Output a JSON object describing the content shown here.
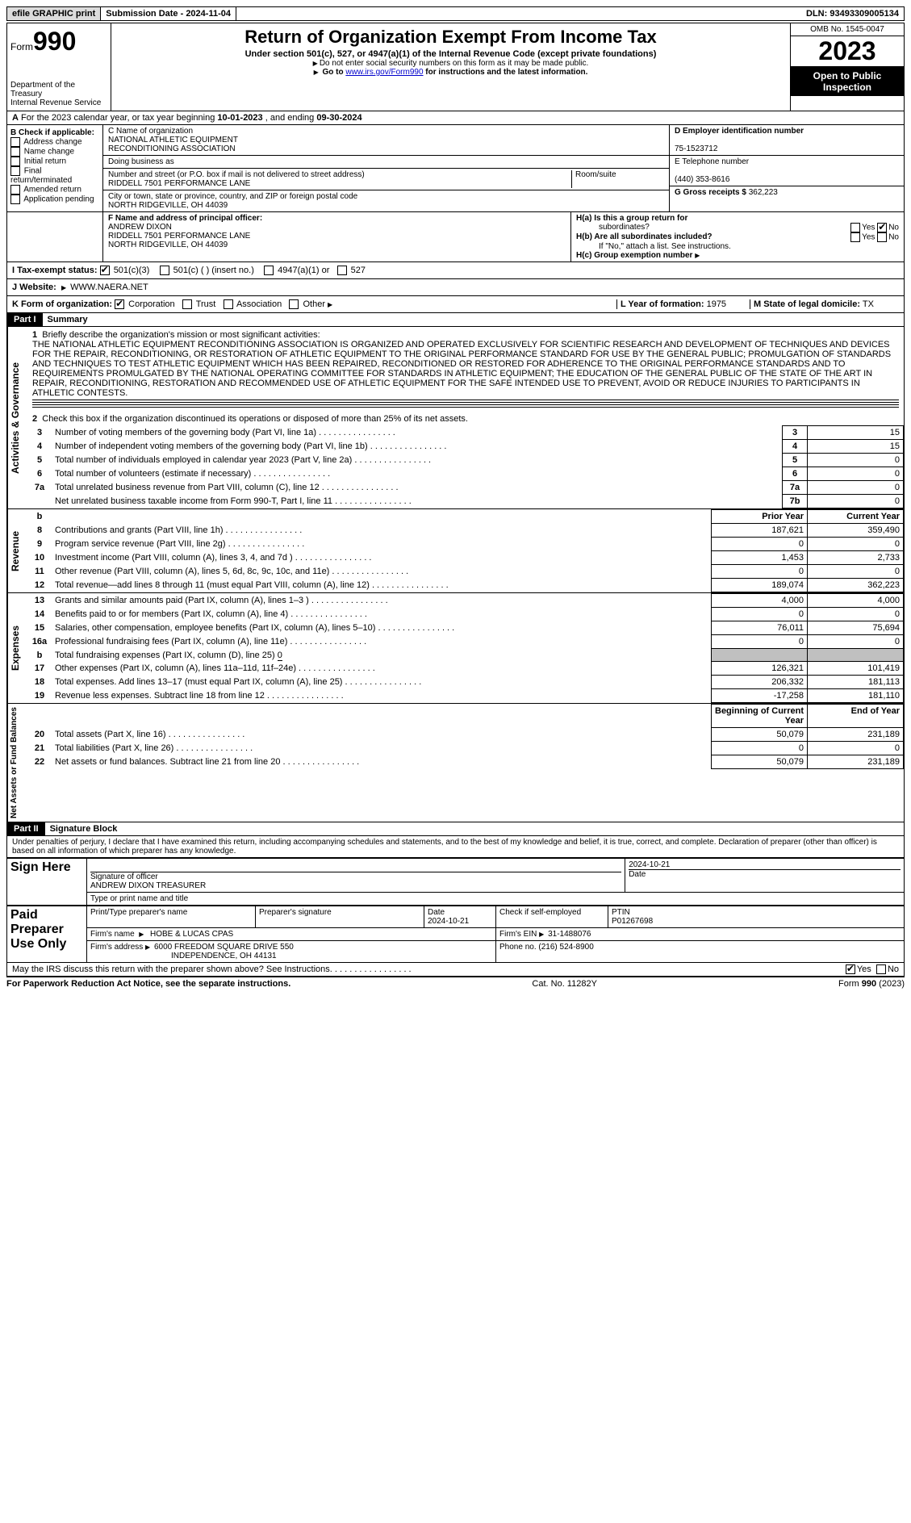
{
  "topbar": {
    "efile_label": "efile GRAPHIC print",
    "submission": "Submission Date - 2024-11-04",
    "dln": "DLN: 93493309005134"
  },
  "header": {
    "form_word": "Form",
    "form_no": "990",
    "dept1": "Department of the Treasury",
    "dept2": "Internal Revenue Service",
    "title": "Return of Organization Exempt From Income Tax",
    "sub": "Under section 501(c), 527, or 4947(a)(1) of the Internal Revenue Code (except private foundations)",
    "note_ssn": "Do not enter social security numbers on this form as it may be made public.",
    "note_goto_pre": "Go to ",
    "note_goto_link": "www.irs.gov/Form990",
    "note_goto_post": " for instructions and the latest information.",
    "omb": "OMB No. 1545-0047",
    "year": "2023",
    "inspect1": "Open to Public",
    "inspect2": "Inspection"
  },
  "rowA": {
    "label": "A",
    "text_pre": "For the 2023 calendar year, or tax year beginning ",
    "begin": "10-01-2023",
    "mid": "   , and ending ",
    "end": "09-30-2024"
  },
  "B": {
    "label": "B Check if applicable:",
    "addr": "Address change",
    "name": "Name change",
    "initial": "Initial return",
    "final": "Final return/terminated",
    "amended": "Amended return",
    "pending": "Application pending"
  },
  "C": {
    "label": "C Name of organization",
    "org1": "NATIONAL ATHLETIC EQUIPMENT",
    "org2": "RECONDITIONING ASSOCIATION",
    "dba": "Doing business as",
    "street_label": "Number and street (or P.O. box if mail is not delivered to street address)",
    "room_label": "Room/suite",
    "street": "RIDDELL 7501 PERFORMANCE LANE",
    "city_label": "City or town, state or province, country, and ZIP or foreign postal code",
    "city": "NORTH RIDGEVILLE, OH  44039"
  },
  "D": {
    "label": "D Employer identification number",
    "ein": "75-1523712"
  },
  "E": {
    "label": "E Telephone number",
    "phone": "(440) 353-8616"
  },
  "G": {
    "label": "G Gross receipts $",
    "amount": "362,223"
  },
  "F": {
    "label": "F  Name and address of principal officer:",
    "l1": "ANDREW DIXON",
    "l2": "RIDDELL 7501 PERFORMANCE LANE",
    "l3": "NORTH RIDGEVILLE, OH  44039"
  },
  "H": {
    "a_label": "H(a)  Is this a group return for",
    "a_sub": "subordinates?",
    "b_label": "H(b)  Are all subordinates included?",
    "b_note": "If \"No,\" attach a list. See instructions.",
    "c_label": "H(c)  Group exemption number",
    "yes": "Yes",
    "no": "No"
  },
  "I": {
    "label": "I   Tax-exempt status:",
    "o1": "501(c)(3)",
    "o2": "501(c) (  ) (insert no.)",
    "o3": "4947(a)(1) or",
    "o4": "527"
  },
  "J": {
    "label": "J   Website:",
    "value": "WWW.NAERA.NET",
    "arrow": "▶"
  },
  "K": {
    "label": "K Form of organization:",
    "corp": "Corporation",
    "trust": "Trust",
    "assoc": "Association",
    "other": "Other"
  },
  "L": {
    "label": "L Year of formation:",
    "val": "1975"
  },
  "M": {
    "label": "M State of legal domicile:",
    "val": "TX"
  },
  "part1": {
    "header": "Part I",
    "title": "Summary",
    "vlabel_ag": "Activities & Governance",
    "vlabel_rev": "Revenue",
    "vlabel_exp": "Expenses",
    "vlabel_net": "Net Assets or Fund Balances",
    "l1_label": "1",
    "l1_text": "Briefly describe the organization's mission or most significant activities:",
    "mission": "THE NATIONAL ATHLETIC EQUIPMENT RECONDITIONING ASSOCIATION IS ORGANIZED AND OPERATED EXCLUSIVELY FOR SCIENTIFIC RESEARCH AND DEVELOPMENT OF TECHNIQUES AND DEVICES FOR THE REPAIR, RECONDITIONING, OR RESTORATION OF ATHLETIC EQUIPMENT TO THE ORIGINAL PERFORMANCE STANDARD FOR USE BY THE GENERAL PUBLIC; PROMULGATION OF STANDARDS AND TECHNIQUES TO TEST ATHLETIC EQUIPMENT WHICH HAS BEEN REPAIRED, RECONDITIONED OR RESTORED FOR ADHERENCE TO THE ORIGINAL PERFORMANCE STANDARDS AND TO REQUIREMENTS PROMULGATED BY THE NATIONAL OPERATING COMMITTEE FOR STANDARDS IN ATHLETIC EQUIPMENT; THE EDUCATION OF THE GENERAL PUBLIC OF THE STATE OF THE ART IN REPAIR, RECONDITIONING, RESTORATION AND RECOMMENDED USE OF ATHLETIC EQUIPMENT FOR THE SAFE INTENDED USE TO PREVENT, AVOID OR REDUCE INJURIES TO PARTICIPANTS IN ATHLETIC CONTESTS.",
    "l2": "Check this box      if the organization discontinued its operations or disposed of more than 25% of its net assets.",
    "rows_ag": [
      {
        "n": "3",
        "d": "Number of voting members of the governing body (Part VI, line 1a)",
        "c": "3",
        "v": "15"
      },
      {
        "n": "4",
        "d": "Number of independent voting members of the governing body (Part VI, line 1b)",
        "c": "4",
        "v": "15"
      },
      {
        "n": "5",
        "d": "Total number of individuals employed in calendar year 2023 (Part V, line 2a)",
        "c": "5",
        "v": "0"
      },
      {
        "n": "6",
        "d": "Total number of volunteers (estimate if necessary)",
        "c": "6",
        "v": "0"
      },
      {
        "n": "7a",
        "d": "Total unrelated business revenue from Part VIII, column (C), line 12",
        "c": "7a",
        "v": "0"
      },
      {
        "n": "",
        "d": "Net unrelated business taxable income from Form 990-T, Part I, line 11",
        "c": "7b",
        "v": "0"
      }
    ],
    "col_prior": "Prior Year",
    "col_current": "Current Year",
    "col_begin": "Beginning of Current Year",
    "col_end": "End of Year",
    "rev": [
      {
        "n": "8",
        "d": "Contributions and grants (Part VIII, line 1h)",
        "p": "187,621",
        "c": "359,490"
      },
      {
        "n": "9",
        "d": "Program service revenue (Part VIII, line 2g)",
        "p": "0",
        "c": "0"
      },
      {
        "n": "10",
        "d": "Investment income (Part VIII, column (A), lines 3, 4, and 7d )",
        "p": "1,453",
        "c": "2,733"
      },
      {
        "n": "11",
        "d": "Other revenue (Part VIII, column (A), lines 5, 6d, 8c, 9c, 10c, and 11e)",
        "p": "0",
        "c": "0"
      },
      {
        "n": "12",
        "d": "Total revenue—add lines 8 through 11 (must equal Part VIII, column (A), line 12)",
        "p": "189,074",
        "c": "362,223"
      }
    ],
    "exp_b_label": "b",
    "exp_b_text": "Total fundraising expenses (Part IX, column (D), line 25) ",
    "exp_b_val": "0",
    "exp": [
      {
        "n": "13",
        "d": "Grants and similar amounts paid (Part IX, column (A), lines 1–3 )",
        "p": "4,000",
        "c": "4,000"
      },
      {
        "n": "14",
        "d": "Benefits paid to or for members (Part IX, column (A), line 4)",
        "p": "0",
        "c": "0"
      },
      {
        "n": "15",
        "d": "Salaries, other compensation, employee benefits (Part IX, column (A), lines 5–10)",
        "p": "76,011",
        "c": "75,694"
      },
      {
        "n": "16a",
        "d": "Professional fundraising fees (Part IX, column (A), line 11e)",
        "p": "0",
        "c": "0"
      },
      {
        "n": "17",
        "d": "Other expenses (Part IX, column (A), lines 11a–11d, 11f–24e)",
        "p": "126,321",
        "c": "101,419"
      },
      {
        "n": "18",
        "d": "Total expenses. Add lines 13–17 (must equal Part IX, column (A), line 25)",
        "p": "206,332",
        "c": "181,113"
      },
      {
        "n": "19",
        "d": "Revenue less expenses. Subtract line 18 from line 12",
        "p": "-17,258",
        "c": "181,110"
      }
    ],
    "net": [
      {
        "n": "20",
        "d": "Total assets (Part X, line 16)",
        "p": "50,079",
        "c": "231,189"
      },
      {
        "n": "21",
        "d": "Total liabilities (Part X, line 26)",
        "p": "0",
        "c": "0"
      },
      {
        "n": "22",
        "d": "Net assets or fund balances. Subtract line 21 from line 20",
        "p": "50,079",
        "c": "231,189"
      }
    ]
  },
  "part2": {
    "header": "Part II",
    "title": "Signature Block",
    "decl": "Under penalties of perjury, I declare that I have examined this return, including accompanying schedules and statements, and to the best of my knowledge and belief, it is true, correct, and complete. Declaration of preparer (other than officer) is based on all information of which preparer has any knowledge.",
    "sign_here": "Sign Here",
    "sig_label": "Signature of officer",
    "date_label": "Date",
    "date1": "2024-10-21",
    "officer": "ANDREW DIXON TREASURER",
    "type_label": "Type or print name and title",
    "paid": "Paid Preparer Use Only",
    "pp_name_label": "Print/Type preparer's name",
    "pp_sig_label": "Preparer's signature",
    "pp_date": "2024-10-21",
    "pp_self": "Check       if self-employed",
    "ptin_label": "PTIN",
    "ptin": "P01267698",
    "firm_name_label": "Firm's name",
    "firm_name": "HOBE & LUCAS CPAS",
    "firm_ein_label": "Firm's EIN",
    "firm_ein": "31-1488076",
    "firm_addr_label": "Firm's address",
    "firm_addr1": "6000 FREEDOM SQUARE DRIVE 550",
    "firm_addr2": "INDEPENDENCE, OH  44131",
    "firm_phone_label": "Phone no.",
    "firm_phone": "(216) 524-8900",
    "discuss": "May the IRS discuss this return with the preparer shown above? See Instructions."
  },
  "footer": {
    "left": "For Paperwork Reduction Act Notice, see the separate instructions.",
    "mid": "Cat. No. 11282Y",
    "right": "Form 990 (2023)"
  },
  "colors": {
    "black": "#000000",
    "shade": "#c0c0c0",
    "link": "#0000cc",
    "gray": "#dcdcdc"
  }
}
